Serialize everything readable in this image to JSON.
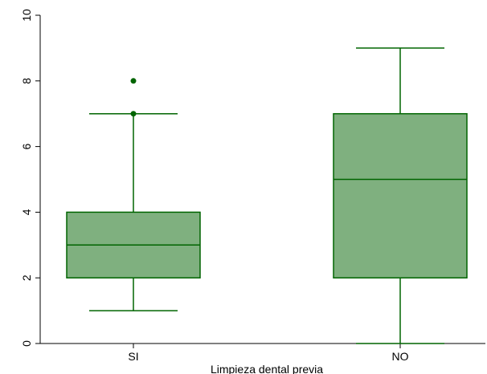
{
  "chart_data": {
    "type": "box",
    "xlabel": "Limpieza dental previa",
    "ylabel": "",
    "ylim": [
      0,
      10
    ],
    "yticks": [
      0,
      2,
      4,
      6,
      8,
      10
    ],
    "categories": [
      "SI",
      "NO"
    ],
    "boxes": [
      {
        "category": "SI",
        "whisker_low": 1,
        "q1": 2,
        "median": 3,
        "q3": 4,
        "whisker_high": 7,
        "outliers": [
          7,
          8
        ]
      },
      {
        "category": "NO",
        "whisker_low": 0,
        "q1": 2,
        "median": 5,
        "q3": 7,
        "whisker_high": 9,
        "outliers": []
      }
    ],
    "grid": false,
    "colors": {
      "box_fill": "#7fb07f",
      "box_stroke": "#006400",
      "outlier": "#006400",
      "axis": "#000000"
    }
  }
}
